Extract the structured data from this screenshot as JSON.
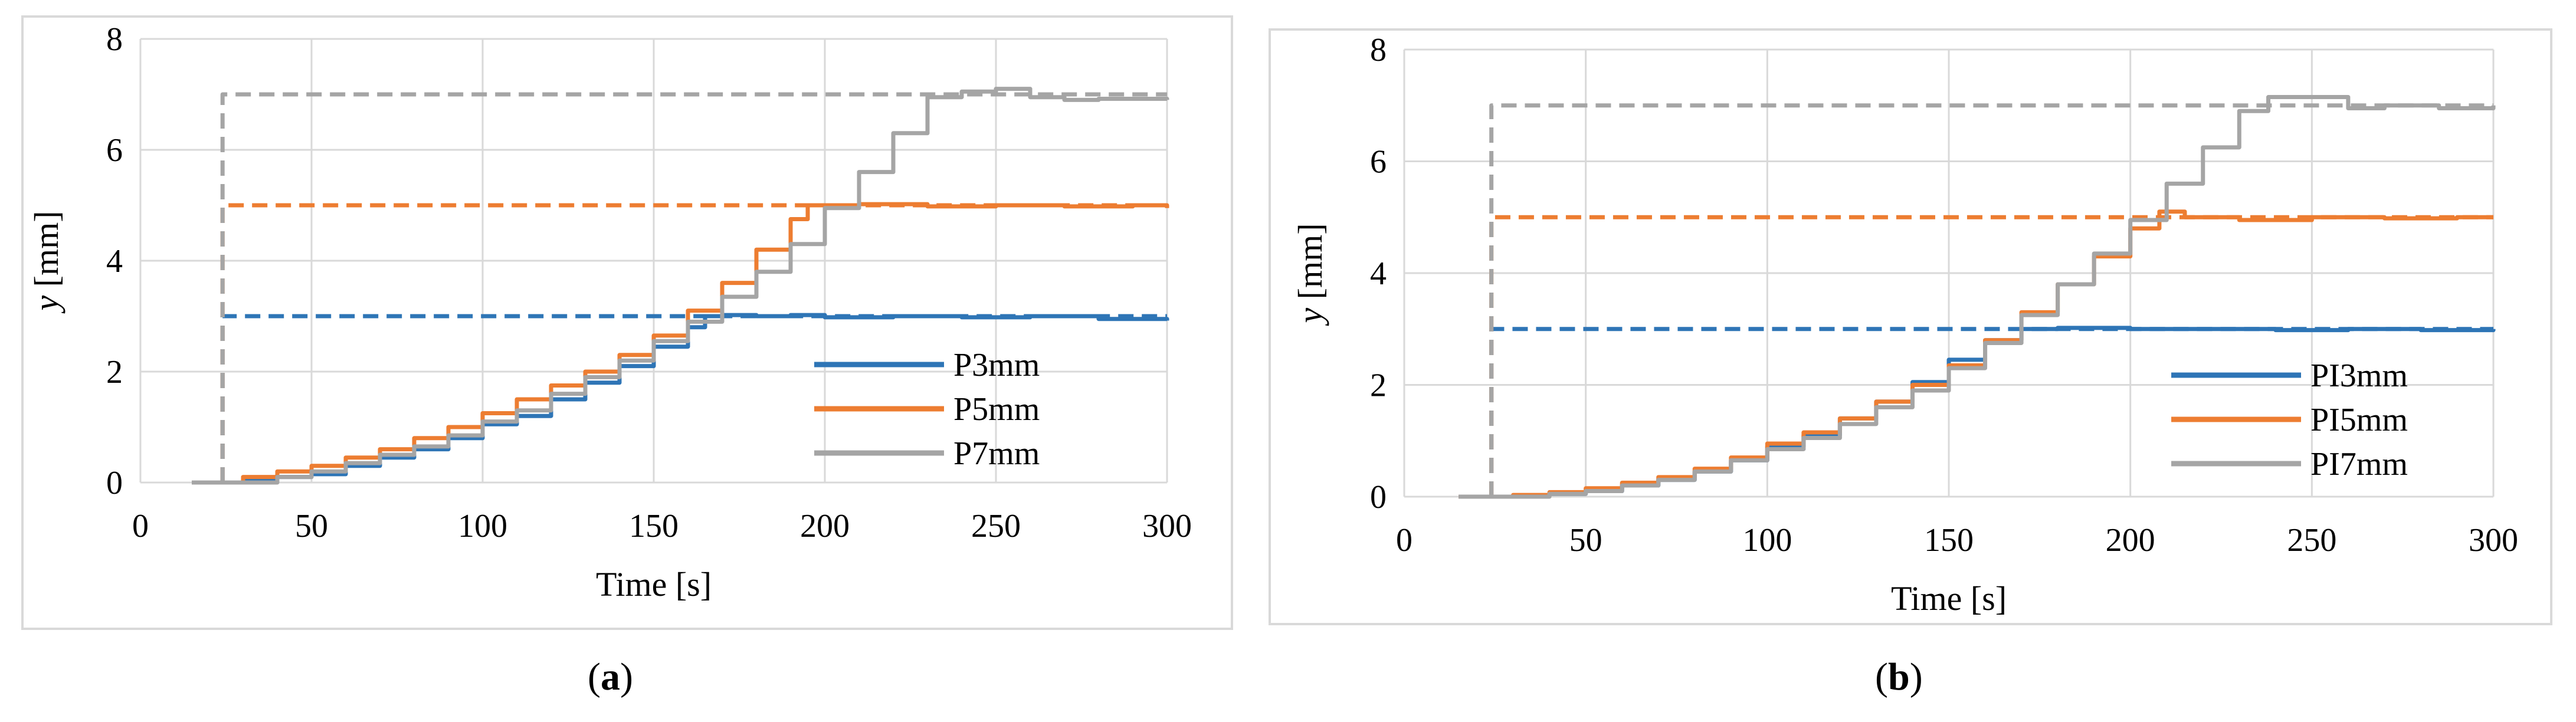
{
  "chart_data": [
    {
      "id": "a",
      "type": "line",
      "panel_label": "a",
      "xlabel": "Time [s]",
      "ylabel_italic": "y",
      "ylabel_rest": " [mm]",
      "xlim": [
        0,
        300
      ],
      "ylim": [
        0,
        8
      ],
      "xticks": [
        0,
        50,
        100,
        150,
        200,
        250,
        300
      ],
      "yticks": [
        0,
        2,
        4,
        6,
        8
      ],
      "grid": true,
      "legend_position": "bottom-right",
      "series": [
        {
          "name": "P3mm",
          "color": "#2e75b6",
          "x": [
            15,
            24,
            30,
            40,
            50,
            60,
            70,
            80,
            90,
            100,
            110,
            120,
            130,
            140,
            150,
            160,
            165,
            170,
            180,
            190,
            200,
            220,
            240,
            260,
            280,
            300
          ],
          "y": [
            0,
            0,
            0.05,
            0.1,
            0.15,
            0.3,
            0.45,
            0.6,
            0.8,
            1.05,
            1.2,
            1.5,
            1.8,
            2.1,
            2.45,
            2.8,
            3.0,
            3.02,
            3.0,
            3.02,
            2.98,
            3.0,
            2.98,
            3.0,
            2.95,
            2.92
          ]
        },
        {
          "name": "P5mm",
          "color": "#ed7d31",
          "x": [
            15,
            24,
            30,
            40,
            50,
            60,
            70,
            80,
            90,
            100,
            110,
            120,
            130,
            140,
            150,
            160,
            170,
            180,
            190,
            195,
            200,
            210,
            230,
            250,
            270,
            290,
            300
          ],
          "y": [
            0,
            0,
            0.1,
            0.2,
            0.3,
            0.45,
            0.6,
            0.8,
            1.0,
            1.25,
            1.5,
            1.75,
            2.0,
            2.3,
            2.65,
            3.1,
            3.6,
            4.2,
            4.75,
            5.0,
            5.0,
            5.02,
            4.98,
            5.0,
            4.98,
            5.0,
            4.95
          ]
        },
        {
          "name": "P7mm",
          "color": "#a5a5a5",
          "x": [
            15,
            24,
            30,
            40,
            50,
            60,
            70,
            80,
            90,
            100,
            110,
            120,
            130,
            140,
            150,
            160,
            170,
            180,
            190,
            200,
            210,
            220,
            230,
            240,
            250,
            260,
            270,
            280,
            300
          ],
          "y": [
            0,
            0,
            0,
            0.1,
            0.2,
            0.35,
            0.5,
            0.65,
            0.85,
            1.1,
            1.3,
            1.6,
            1.9,
            2.2,
            2.55,
            2.9,
            3.35,
            3.8,
            4.3,
            4.95,
            5.6,
            6.3,
            6.95,
            7.05,
            7.1,
            6.95,
            6.9,
            6.92,
            6.9
          ]
        },
        {
          "name": "P3mm-reference",
          "color": "#2e75b6",
          "dashed": true,
          "x": [
            24,
            24,
            300
          ],
          "y": [
            0,
            3,
            3
          ]
        },
        {
          "name": "P5mm-reference",
          "color": "#ed7d31",
          "dashed": true,
          "x": [
            24,
            24,
            300
          ],
          "y": [
            0,
            5,
            5
          ]
        },
        {
          "name": "P7mm-reference",
          "color": "#a5a5a5",
          "dashed": true,
          "x": [
            24,
            24,
            300
          ],
          "y": [
            0,
            7,
            7
          ]
        }
      ],
      "legend": [
        "P3mm",
        "P5mm",
        "P7mm"
      ]
    },
    {
      "id": "b",
      "type": "line",
      "panel_label": "b",
      "xlabel": "Time [s]",
      "ylabel_italic": "y",
      "ylabel_rest": " [mm]",
      "xlim": [
        0,
        300
      ],
      "ylim": [
        0,
        8
      ],
      "xticks": [
        0,
        50,
        100,
        150,
        200,
        250,
        300
      ],
      "yticks": [
        0,
        2,
        4,
        6,
        8
      ],
      "grid": true,
      "legend_position": "bottom-right",
      "series": [
        {
          "name": "PI3mm",
          "color": "#2e75b6",
          "x": [
            15,
            24,
            30,
            40,
            50,
            60,
            70,
            80,
            90,
            100,
            110,
            120,
            130,
            140,
            150,
            160,
            170,
            180,
            200,
            220,
            240,
            260,
            280,
            300
          ],
          "y": [
            0,
            0,
            0.02,
            0.05,
            0.1,
            0.2,
            0.3,
            0.45,
            0.65,
            0.9,
            1.1,
            1.4,
            1.7,
            2.05,
            2.45,
            2.8,
            3.0,
            3.02,
            3.0,
            3.0,
            2.98,
            3.0,
            2.98,
            3.0
          ]
        },
        {
          "name": "PI5mm",
          "color": "#ed7d31",
          "x": [
            15,
            24,
            30,
            40,
            50,
            60,
            70,
            80,
            90,
            100,
            110,
            120,
            130,
            140,
            150,
            160,
            170,
            180,
            190,
            200,
            208,
            215,
            230,
            250,
            270,
            290,
            300
          ],
          "y": [
            0,
            0,
            0.03,
            0.08,
            0.15,
            0.25,
            0.35,
            0.5,
            0.7,
            0.95,
            1.15,
            1.4,
            1.7,
            2.0,
            2.35,
            2.8,
            3.3,
            3.8,
            4.3,
            4.8,
            5.1,
            5.0,
            4.95,
            5.0,
            4.98,
            5.0,
            5.0
          ]
        },
        {
          "name": "PI7mm",
          "color": "#a5a5a5",
          "x": [
            15,
            24,
            30,
            40,
            50,
            60,
            70,
            80,
            90,
            100,
            110,
            120,
            130,
            140,
            150,
            160,
            170,
            180,
            190,
            200,
            210,
            220,
            230,
            238,
            250,
            260,
            270,
            285,
            300
          ],
          "y": [
            0,
            0,
            0,
            0.05,
            0.1,
            0.2,
            0.3,
            0.45,
            0.65,
            0.85,
            1.05,
            1.3,
            1.6,
            1.9,
            2.3,
            2.75,
            3.25,
            3.8,
            4.35,
            4.95,
            5.6,
            6.25,
            6.9,
            7.15,
            7.15,
            6.95,
            7.0,
            6.95,
            7.0
          ]
        },
        {
          "name": "PI3mm-reference",
          "color": "#2e75b6",
          "dashed": true,
          "x": [
            24,
            24,
            300
          ],
          "y": [
            0,
            3,
            3
          ]
        },
        {
          "name": "PI5mm-reference",
          "color": "#ed7d31",
          "dashed": true,
          "x": [
            24,
            24,
            300
          ],
          "y": [
            0,
            5,
            5
          ]
        },
        {
          "name": "PI7mm-reference",
          "color": "#a5a5a5",
          "dashed": true,
          "x": [
            24,
            24,
            300
          ],
          "y": [
            0,
            7,
            7
          ]
        }
      ],
      "legend": [
        "PI3mm",
        "PI5mm",
        "PI7mm"
      ]
    }
  ]
}
